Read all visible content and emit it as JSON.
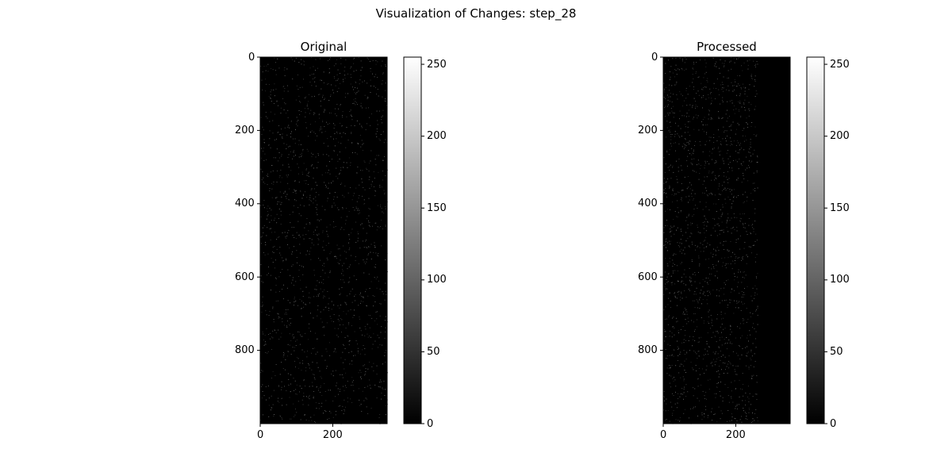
{
  "figure": {
    "suptitle": "Visualization of Changes: step_28"
  },
  "chart_data": [
    {
      "type": "heatmap",
      "title": "Original",
      "xlabel": "",
      "ylabel": "",
      "image_width": 350,
      "image_height": 1000,
      "x_ticks": [
        0,
        200
      ],
      "y_ticks": [
        0,
        200,
        400,
        600,
        800
      ],
      "xlim": [
        0,
        350
      ],
      "ylim": [
        1000,
        0
      ],
      "colormap": "gray",
      "background_value": 0,
      "sparse_bright_pixels": true,
      "colorbar": {
        "vmin": 0,
        "vmax": 255,
        "ticks": [
          0,
          50,
          100,
          150,
          200,
          250
        ]
      }
    },
    {
      "type": "heatmap",
      "title": "Processed",
      "xlabel": "",
      "ylabel": "",
      "image_width": 350,
      "image_height": 1000,
      "active_width": 260,
      "x_ticks": [
        0,
        200
      ],
      "y_ticks": [
        0,
        200,
        400,
        600,
        800
      ],
      "xlim": [
        0,
        350
      ],
      "ylim": [
        1000,
        0
      ],
      "colormap": "gray",
      "background_value": 0,
      "sparse_bright_pixels": true,
      "colorbar": {
        "vmin": 0,
        "vmax": 255,
        "ticks": [
          0,
          50,
          100,
          150,
          200,
          250
        ]
      }
    }
  ]
}
